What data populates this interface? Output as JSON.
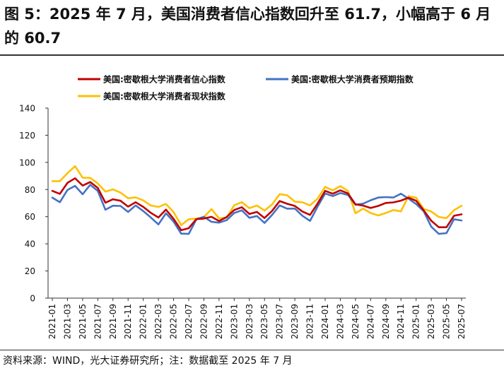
{
  "title": "图 5：2025 年 7 月，美国消费者信心指数回升至 61.7，小幅高于 6 月的 60.7",
  "source": "资料来源：WIND，光大证券研究所；注：数据截至 2025 年 7 月",
  "chart_data": {
    "type": "line",
    "title": "",
    "xlabel": "",
    "ylabel": "",
    "ylim": [
      0,
      140
    ],
    "yticks": [
      0,
      20,
      40,
      60,
      80,
      100,
      120,
      140
    ],
    "grid": false,
    "legend_position": "top",
    "x_tick_labels": [
      "2021-01",
      "2021-03",
      "2021-05",
      "2021-07",
      "2021-09",
      "2021-11",
      "2022-01",
      "2022-03",
      "2022-05",
      "2022-07",
      "2022-09",
      "2022-11",
      "2023-01",
      "2023-03",
      "2023-05",
      "2023-07",
      "2023-09",
      "2023-11",
      "2024-01",
      "2024-03",
      "2024-05",
      "2024-07",
      "2024-09",
      "2024-11",
      "2025-01",
      "2025-03",
      "2025-05",
      "2025-07"
    ],
    "x": [
      "2021-01",
      "2021-02",
      "2021-03",
      "2021-04",
      "2021-05",
      "2021-06",
      "2021-07",
      "2021-08",
      "2021-09",
      "2021-10",
      "2021-11",
      "2021-12",
      "2022-01",
      "2022-02",
      "2022-03",
      "2022-04",
      "2022-05",
      "2022-06",
      "2022-07",
      "2022-08",
      "2022-09",
      "2022-10",
      "2022-11",
      "2022-12",
      "2023-01",
      "2023-02",
      "2023-03",
      "2023-04",
      "2023-05",
      "2023-06",
      "2023-07",
      "2023-08",
      "2023-09",
      "2023-10",
      "2023-11",
      "2023-12",
      "2024-01",
      "2024-02",
      "2024-03",
      "2024-04",
      "2024-05",
      "2024-06",
      "2024-07",
      "2024-08",
      "2024-09",
      "2024-10",
      "2024-11",
      "2024-12",
      "2025-01",
      "2025-02",
      "2025-03",
      "2025-04",
      "2025-05",
      "2025-06",
      "2025-07"
    ],
    "series": [
      {
        "name": "美国:密歇根大学消费者信心指数",
        "color": "#c00000",
        "values": [
          79.0,
          76.8,
          84.9,
          88.3,
          82.9,
          85.5,
          81.2,
          70.3,
          72.8,
          71.7,
          67.4,
          70.6,
          67.2,
          62.8,
          59.4,
          65.2,
          58.4,
          50.0,
          51.5,
          58.2,
          58.6,
          59.9,
          56.8,
          59.7,
          64.9,
          67.0,
          62.0,
          63.5,
          59.0,
          64.2,
          71.5,
          69.5,
          67.9,
          63.8,
          61.3,
          69.7,
          79.0,
          76.9,
          79.4,
          77.2,
          69.1,
          68.2,
          66.4,
          67.9,
          70.1,
          70.5,
          71.8,
          74.0,
          71.7,
          64.7,
          57.0,
          52.2,
          52.2,
          60.7,
          61.7
        ]
      },
      {
        "name": "美国:密歇根大学消费者预期指数",
        "color": "#4472c4",
        "values": [
          74.0,
          70.7,
          79.7,
          82.7,
          76.5,
          83.5,
          79.0,
          65.1,
          68.1,
          67.9,
          63.5,
          68.3,
          64.1,
          59.4,
          54.3,
          62.5,
          56.3,
          47.5,
          47.3,
          58.0,
          59.9,
          56.2,
          55.6,
          57.4,
          62.7,
          64.7,
          59.2,
          60.5,
          55.4,
          61.3,
          68.3,
          65.9,
          66.0,
          60.7,
          56.9,
          67.4,
          77.1,
          75.2,
          77.4,
          76.0,
          68.8,
          69.6,
          72.1,
          74.1,
          74.4,
          74.1,
          76.9,
          73.3,
          69.3,
          64.0,
          52.6,
          47.3,
          47.9,
          58.1,
          57.2
        ]
      },
      {
        "name": "美国:密歇根大学消费者现状指数",
        "color": "#ffc000",
        "values": [
          86.2,
          86.2,
          92.0,
          97.2,
          88.7,
          88.6,
          84.5,
          78.5,
          80.1,
          77.7,
          73.6,
          74.2,
          72.0,
          68.2,
          67.2,
          69.4,
          63.3,
          53.8,
          58.1,
          58.6,
          59.7,
          65.6,
          58.8,
          59.4,
          68.4,
          70.7,
          66.3,
          68.2,
          64.5,
          69.0,
          76.6,
          75.7,
          71.1,
          70.6,
          68.3,
          73.3,
          81.9,
          79.4,
          82.5,
          79.0,
          62.5,
          65.9,
          62.7,
          60.9,
          62.7,
          64.9,
          63.9,
          75.1,
          74.0,
          65.7,
          63.8,
          59.8,
          58.9,
          64.8,
          68.0
        ]
      }
    ]
  }
}
